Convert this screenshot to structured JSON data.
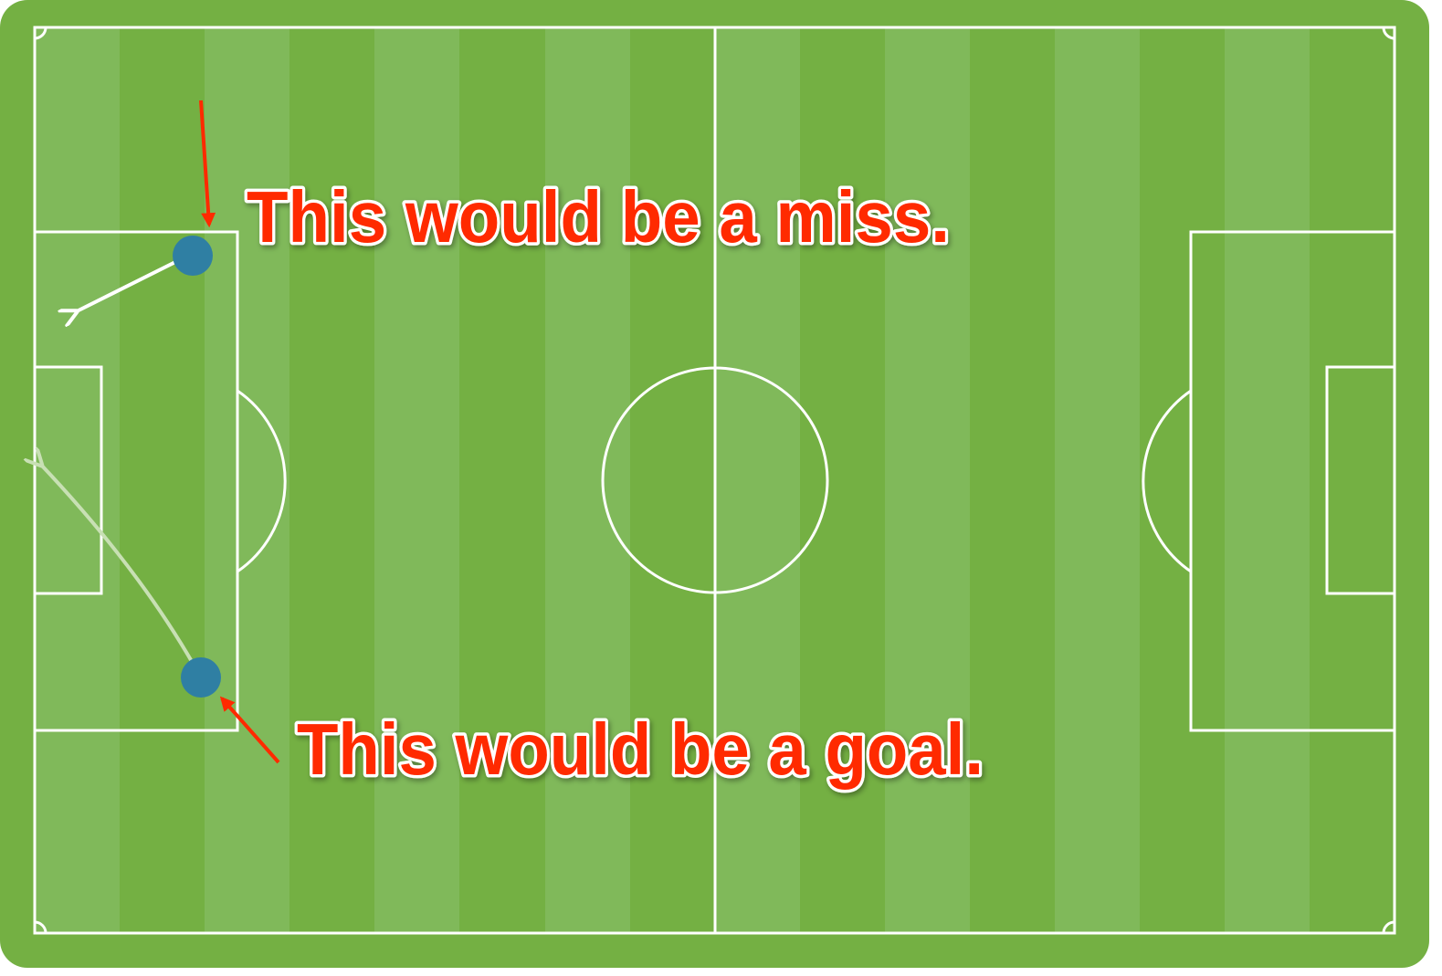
{
  "annotations": [
    "This would be a miss.",
    "This would be a goal."
  ]
}
